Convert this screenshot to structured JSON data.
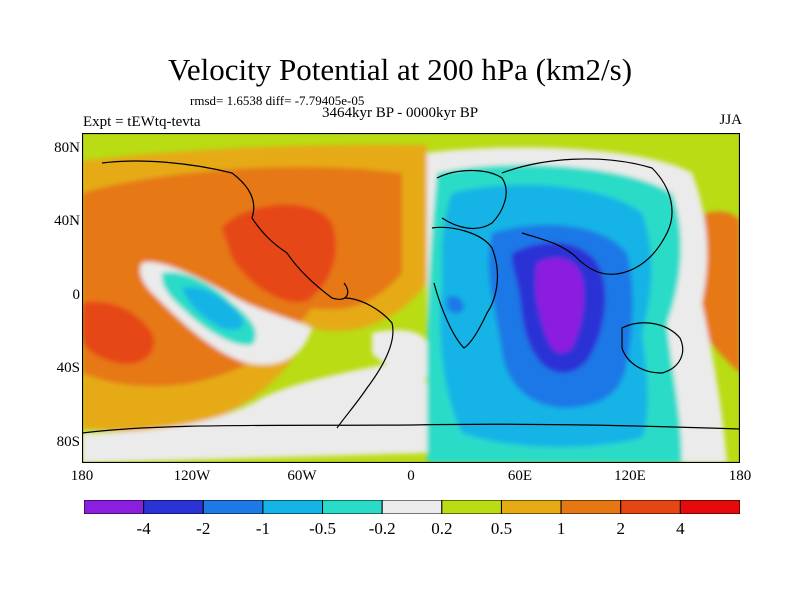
{
  "title": "Velocity Potential at 200 hPa (km2/s)",
  "stats": "rmsd= 1.6538 diff= -7.79405e-05",
  "experiment": "Expt = tEWtq-tevta",
  "period": "3464kyr BP - 0000kyr BP",
  "season": "JJA",
  "lat_labels": [
    "80N",
    "40N",
    "0",
    "40S",
    "80S"
  ],
  "lon_labels": [
    "180",
    "120W",
    "60W",
    "0",
    "60E",
    "120E",
    "180"
  ],
  "colorbar": {
    "colors": [
      "#8c1ee0",
      "#2b32d6",
      "#1e78e6",
      "#14b4e6",
      "#2adcc8",
      "#ebebeb",
      "#b9dc14",
      "#e6aa14",
      "#e67814",
      "#e64614",
      "#e60a0a"
    ],
    "labels": [
      "-4",
      "-2",
      "-1",
      "-0.5",
      "-0.2",
      "0.2",
      "0.5",
      "1",
      "2",
      "4"
    ]
  }
}
